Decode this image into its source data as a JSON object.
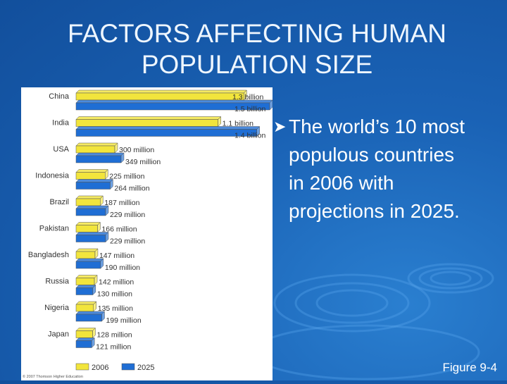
{
  "slide": {
    "title_line1": "FACTORS AFFECTING HUMAN",
    "title_line2": "POPULATION SIZE",
    "bullet_text_line1": "The world’s 10 most",
    "bullet_text_line2": "populous countries",
    "bullet_text_line3": "in 2006 with",
    "bullet_text_line4": "projections in 2025.",
    "figure_label": "Figure 9-4",
    "copyright": "© 2007 Thomson Higher Education"
  },
  "colors": {
    "series_2006": "#f2e53c",
    "series_2025": "#1f6ed4",
    "background": "#1a62b5"
  },
  "chart_data": {
    "type": "bar",
    "orientation": "horizontal",
    "title": "",
    "xlabel": "",
    "ylabel": "",
    "xlim": [
      0,
      1.5
    ],
    "units": "billion",
    "categories": [
      "China",
      "India",
      "USA",
      "Indonesia",
      "Brazil",
      "Pakistan",
      "Bangladesh",
      "Russia",
      "Nigeria",
      "Japan"
    ],
    "series": [
      {
        "name": "2006",
        "values": [
          1.3,
          1.1,
          0.3,
          0.225,
          0.187,
          0.166,
          0.147,
          0.142,
          0.135,
          0.128
        ],
        "labels": [
          "1.3 billion",
          "1.1 billion",
          "300 million",
          "225 million",
          "187 million",
          "166 million",
          "147 million",
          "142 million",
          "135 million",
          "128 million"
        ]
      },
      {
        "name": "2025",
        "values": [
          1.5,
          1.4,
          0.349,
          0.264,
          0.229,
          0.229,
          0.19,
          0.13,
          0.199,
          0.121
        ],
        "labels": [
          "1.5 billion",
          "1.4 billion",
          "349 million",
          "264 million",
          "229 million",
          "229 million",
          "190 million",
          "130 million",
          "199 million",
          "121 million"
        ]
      }
    ],
    "legend": [
      "2006",
      "2025"
    ],
    "legend_position": "bottom-left"
  }
}
